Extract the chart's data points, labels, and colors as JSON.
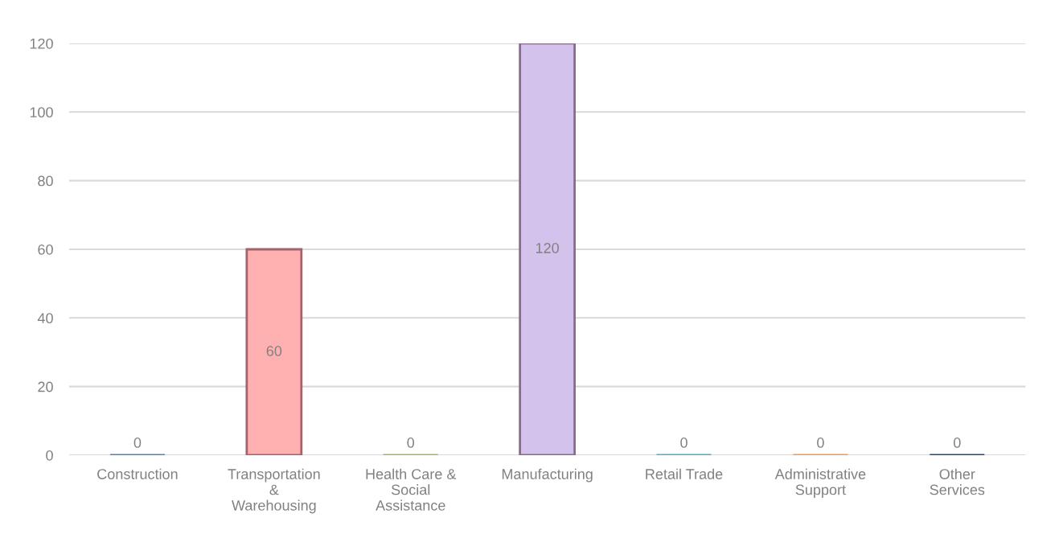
{
  "chart_data": {
    "type": "bar",
    "categories": [
      "Construction",
      "Transportation\n&\nWarehousing",
      "Health Care &\nSocial\nAssistance",
      "Manufacturing",
      "Retail Trade",
      "Administrative\nSupport",
      "Other\nServices"
    ],
    "values": [
      0,
      60,
      0,
      120,
      0,
      0,
      0
    ],
    "colors": [
      "#4f81bd",
      "#ffb0b0",
      "#9bbb59",
      "#d3c3ec",
      "#4bacc6",
      "#f79646",
      "#1f497d"
    ],
    "ylim": [
      0,
      120
    ],
    "yticks": [
      0,
      20,
      40,
      60,
      80,
      100,
      120
    ],
    "grid": "y",
    "data_labels": true
  }
}
